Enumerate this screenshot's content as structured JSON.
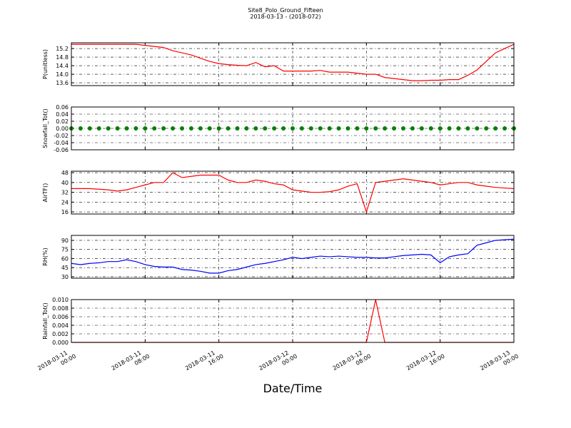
{
  "title": "Site8_Polo_Ground_Fifteen",
  "subtitle": "2018-03-13 - (2018-072)",
  "x_axis": {
    "label": "Date/Time",
    "xlim": [
      "2018-03-11 00:00",
      "2018-03-13 00:00"
    ],
    "xticks": [
      "2018-03-11 00:00",
      "2018-03-11 08:00",
      "2018-03-11 16:00",
      "2018-03-12 00:00",
      "2018-03-12 08:00",
      "2018-03-12 16:00",
      "2018-03-13 00:00"
    ],
    "x": [
      "2018-03-11 00:00",
      "2018-03-11 01:00",
      "2018-03-11 02:00",
      "2018-03-11 03:00",
      "2018-03-11 04:00",
      "2018-03-11 05:00",
      "2018-03-11 06:00",
      "2018-03-11 07:00",
      "2018-03-11 08:00",
      "2018-03-11 09:00",
      "2018-03-11 10:00",
      "2018-03-11 11:00",
      "2018-03-11 12:00",
      "2018-03-11 13:00",
      "2018-03-11 14:00",
      "2018-03-11 15:00",
      "2018-03-11 16:00",
      "2018-03-11 17:00",
      "2018-03-11 18:00",
      "2018-03-11 19:00",
      "2018-03-11 20:00",
      "2018-03-11 21:00",
      "2018-03-11 22:00",
      "2018-03-11 23:00",
      "2018-03-12 00:00",
      "2018-03-12 01:00",
      "2018-03-12 02:00",
      "2018-03-12 03:00",
      "2018-03-12 04:00",
      "2018-03-12 05:00",
      "2018-03-12 06:00",
      "2018-03-12 07:00",
      "2018-03-12 08:00",
      "2018-03-12 09:00",
      "2018-03-12 10:00",
      "2018-03-12 11:00",
      "2018-03-12 12:00",
      "2018-03-12 13:00",
      "2018-03-12 14:00",
      "2018-03-12 15:00",
      "2018-03-12 16:00",
      "2018-03-12 17:00",
      "2018-03-12 18:00",
      "2018-03-12 19:00",
      "2018-03-12 20:00",
      "2018-03-12 21:00",
      "2018-03-12 22:00",
      "2018-03-12 23:00",
      "2018-03-13 00:00"
    ]
  },
  "chart_data": [
    {
      "type": "line",
      "ylabel": "P(unitless)",
      "grid": true,
      "ylim": [
        13.47,
        15.47
      ],
      "yticks": [
        13.6,
        {
          "value": 14.0,
          "label": "14.0"
        },
        14.4,
        14.8,
        15.2
      ],
      "series": [
        {
          "color": "#ff0000",
          "values": [
            15.4,
            15.4,
            15.4,
            15.4,
            15.4,
            15.4,
            15.4,
            15.4,
            15.35,
            15.3,
            15.25,
            15.1,
            15.0,
            14.9,
            14.75,
            14.6,
            14.5,
            14.45,
            14.42,
            14.4,
            14.55,
            14.35,
            14.4,
            14.15,
            14.15,
            14.15,
            14.15,
            14.18,
            14.1,
            14.1,
            14.1,
            14.05,
            14.0,
            14.0,
            13.85,
            13.8,
            13.75,
            13.7,
            13.7,
            13.72,
            13.72,
            13.75,
            13.75,
            13.95,
            14.2,
            14.6,
            15.0,
            15.2,
            15.4
          ]
        }
      ]
    },
    {
      "type": "scatter",
      "ylabel": "Snowfall_Tot()",
      "grid": true,
      "ylim": [
        -0.06,
        0.06
      ],
      "yticks": [
        -0.06,
        -0.04,
        -0.02,
        {
          "value": 0,
          "label": "0.00"
        },
        0.02,
        0.04,
        0.06
      ],
      "series": [
        {
          "color": "#008000",
          "values": [
            0,
            0,
            0,
            0,
            0,
            0,
            0,
            0,
            0,
            0,
            0,
            0,
            0,
            0,
            0,
            0,
            0,
            0,
            0,
            0,
            0,
            0,
            0,
            0,
            0,
            0,
            0,
            0,
            0,
            0,
            0,
            0,
            0,
            0,
            0,
            0,
            0,
            0,
            0,
            0,
            0,
            0,
            0,
            0,
            0,
            0,
            0,
            0,
            0
          ]
        }
      ]
    },
    {
      "type": "line",
      "ylabel": "AirTF()",
      "grid": true,
      "ylim": [
        14.3,
        49.2
      ],
      "yticks": [
        16,
        24,
        32,
        40,
        48
      ],
      "series": [
        {
          "color": "#ff0000",
          "values": [
            35,
            35,
            35,
            34.5,
            34,
            33,
            34,
            36,
            38,
            40,
            40,
            48,
            44,
            45,
            46,
            46,
            46,
            42,
            40,
            40,
            42,
            41,
            39,
            38,
            34,
            33,
            32,
            32,
            32.5,
            34,
            37,
            39,
            16,
            40,
            41,
            42,
            43,
            42,
            41,
            40,
            38,
            39,
            40,
            40,
            38,
            37,
            36,
            35.5,
            35
          ]
        }
      ]
    },
    {
      "type": "line",
      "ylabel": "RH(%)",
      "grid": true,
      "ylim": [
        27.6,
        98.2
      ],
      "yticks": [
        30,
        45,
        60,
        75,
        90
      ],
      "series": [
        {
          "color": "#0000ff",
          "values": [
            52,
            50,
            52,
            53,
            55,
            55,
            58,
            55,
            50,
            47,
            46,
            46,
            42,
            41,
            39,
            36,
            36,
            40,
            42,
            46,
            50,
            52,
            55,
            58,
            62,
            60,
            62,
            64,
            63,
            64,
            63,
            62,
            62,
            61,
            61,
            63,
            65,
            66,
            67,
            66,
            53,
            63,
            66,
            68,
            82,
            86,
            90,
            91,
            92
          ]
        }
      ]
    },
    {
      "type": "line",
      "ylabel": "Rainfall_Tot()",
      "grid": true,
      "ylim": [
        0,
        0.01
      ],
      "yticks": [
        {
          "value": 0,
          "label": "0.000"
        },
        0.002,
        0.004,
        0.006,
        0.008,
        {
          "value": 0.01,
          "label": "0.010"
        }
      ],
      "series": [
        {
          "color": "#ff0000",
          "values": [
            0,
            0,
            0,
            0,
            0,
            0,
            0,
            0,
            0,
            0,
            0,
            0,
            0,
            0,
            0,
            0,
            0,
            0,
            0,
            0,
            0,
            0,
            0,
            0,
            0,
            0,
            0,
            0,
            0,
            0,
            0,
            0,
            0,
            0.01,
            0,
            0,
            0,
            0,
            0,
            0,
            0,
            0,
            0,
            0,
            0,
            0,
            0,
            0,
            0
          ]
        }
      ]
    }
  ]
}
